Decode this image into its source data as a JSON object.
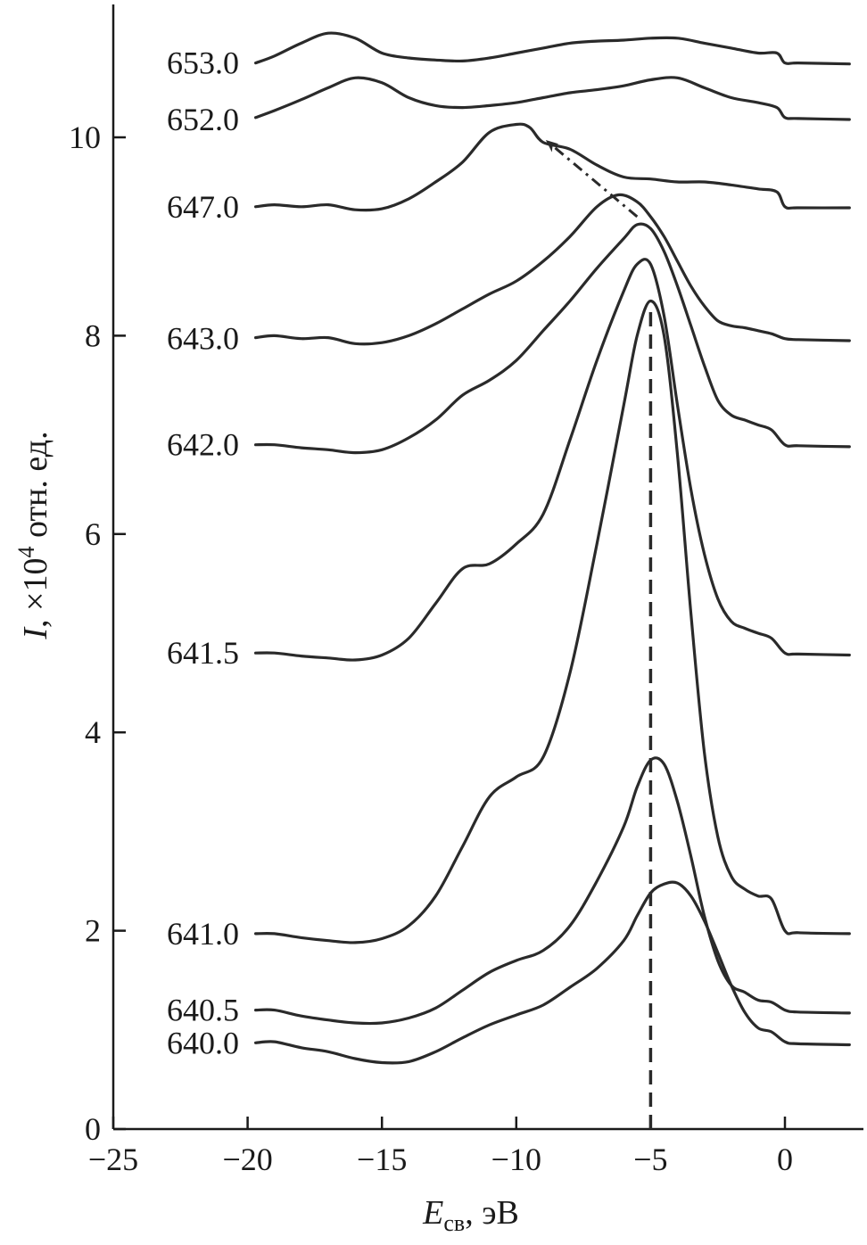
{
  "chart_data": {
    "type": "line",
    "title": "",
    "xlabel_main": "E",
    "xlabel_sub": "св",
    "xlabel_unit": ", эВ",
    "ylabel_main": "I",
    "ylabel_rest": ", ×10",
    "ylabel_power": "4",
    "ylabel_unit": " отн. ед.",
    "xlim": [
      -25,
      2.5
    ],
    "ylim": [
      0,
      11.3
    ],
    "x_ticks": [
      -25,
      -20,
      -15,
      -10,
      -5,
      0
    ],
    "x_tick_labels": [
      "−25",
      "−20",
      "−15",
      "−10",
      "−5",
      "0"
    ],
    "y_ticks": [
      0,
      2,
      4,
      6,
      8,
      10
    ],
    "y_tick_labels": [
      "0",
      "2",
      "4",
      "6",
      "8",
      "10"
    ],
    "series": [
      {
        "name": "640.0",
        "points": [
          [
            -19.7,
            0.87
          ],
          [
            -19,
            0.88
          ],
          [
            -18,
            0.82
          ],
          [
            -17,
            0.78
          ],
          [
            -16,
            0.71
          ],
          [
            -15,
            0.67
          ],
          [
            -14,
            0.68
          ],
          [
            -13,
            0.78
          ],
          [
            -12,
            0.92
          ],
          [
            -11,
            1.05
          ],
          [
            -10,
            1.15
          ],
          [
            -9,
            1.25
          ],
          [
            -8,
            1.43
          ],
          [
            -7,
            1.62
          ],
          [
            -6,
            1.9
          ],
          [
            -5.5,
            2.15
          ],
          [
            -5,
            2.38
          ],
          [
            -4.5,
            2.47
          ],
          [
            -4,
            2.48
          ],
          [
            -3.5,
            2.35
          ],
          [
            -3,
            2.1
          ],
          [
            -2.5,
            1.78
          ],
          [
            -2,
            1.45
          ],
          [
            -1.5,
            1.18
          ],
          [
            -1,
            1.02
          ],
          [
            -0.5,
            0.98
          ],
          [
            0,
            0.88
          ],
          [
            0.5,
            0.86
          ],
          [
            2.4,
            0.85
          ]
        ]
      },
      {
        "name": "640.5",
        "points": [
          [
            -19.7,
            1.2
          ],
          [
            -19,
            1.2
          ],
          [
            -18,
            1.14
          ],
          [
            -17,
            1.1
          ],
          [
            -16,
            1.07
          ],
          [
            -15,
            1.07
          ],
          [
            -14,
            1.12
          ],
          [
            -13,
            1.22
          ],
          [
            -12,
            1.4
          ],
          [
            -11,
            1.58
          ],
          [
            -10,
            1.7
          ],
          [
            -9,
            1.8
          ],
          [
            -8,
            2.05
          ],
          [
            -7,
            2.5
          ],
          [
            -6,
            3.05
          ],
          [
            -5.5,
            3.45
          ],
          [
            -5,
            3.72
          ],
          [
            -4.5,
            3.68
          ],
          [
            -4,
            3.3
          ],
          [
            -3.5,
            2.75
          ],
          [
            -3,
            2.15
          ],
          [
            -2.5,
            1.7
          ],
          [
            -2,
            1.45
          ],
          [
            -1.5,
            1.38
          ],
          [
            -1,
            1.3
          ],
          [
            -0.5,
            1.28
          ],
          [
            0,
            1.2
          ],
          [
            0.5,
            1.18
          ],
          [
            2.4,
            1.17
          ]
        ]
      },
      {
        "name": "641.0",
        "points": [
          [
            -19.7,
            1.97
          ],
          [
            -19,
            1.97
          ],
          [
            -18,
            1.93
          ],
          [
            -17,
            1.9
          ],
          [
            -16,
            1.88
          ],
          [
            -15,
            1.92
          ],
          [
            -14,
            2.05
          ],
          [
            -13,
            2.35
          ],
          [
            -12,
            2.85
          ],
          [
            -11,
            3.35
          ],
          [
            -10,
            3.55
          ],
          [
            -9,
            3.75
          ],
          [
            -8,
            4.6
          ],
          [
            -7,
            5.9
          ],
          [
            -6,
            7.3
          ],
          [
            -5.5,
            8.0
          ],
          [
            -5,
            8.35
          ],
          [
            -4.5,
            8.0
          ],
          [
            -4,
            6.8
          ],
          [
            -3.5,
            5.2
          ],
          [
            -3,
            3.8
          ],
          [
            -2.5,
            2.95
          ],
          [
            -2,
            2.55
          ],
          [
            -1.5,
            2.42
          ],
          [
            -1,
            2.35
          ],
          [
            -0.5,
            2.32
          ],
          [
            0,
            2.0
          ],
          [
            0.5,
            1.98
          ],
          [
            2.4,
            1.97
          ]
        ]
      },
      {
        "name": "641.5",
        "points": [
          [
            -19.7,
            4.8
          ],
          [
            -19,
            4.8
          ],
          [
            -18,
            4.77
          ],
          [
            -17,
            4.75
          ],
          [
            -16,
            4.73
          ],
          [
            -15,
            4.78
          ],
          [
            -14,
            4.95
          ],
          [
            -13,
            5.3
          ],
          [
            -12,
            5.65
          ],
          [
            -11,
            5.7
          ],
          [
            -10,
            5.9
          ],
          [
            -9,
            6.2
          ],
          [
            -8,
            6.95
          ],
          [
            -7,
            7.75
          ],
          [
            -6,
            8.45
          ],
          [
            -5.5,
            8.72
          ],
          [
            -5,
            8.72
          ],
          [
            -4.5,
            8.2
          ],
          [
            -4,
            7.3
          ],
          [
            -3.5,
            6.45
          ],
          [
            -3,
            5.8
          ],
          [
            -2.5,
            5.35
          ],
          [
            -2,
            5.12
          ],
          [
            -1.5,
            5.05
          ],
          [
            -1,
            5.0
          ],
          [
            -0.5,
            4.95
          ],
          [
            0,
            4.8
          ],
          [
            0.5,
            4.79
          ],
          [
            2.4,
            4.78
          ]
        ]
      },
      {
        "name": "642.0",
        "points": [
          [
            -19.7,
            6.9
          ],
          [
            -19,
            6.9
          ],
          [
            -18,
            6.87
          ],
          [
            -17,
            6.85
          ],
          [
            -16,
            6.82
          ],
          [
            -15,
            6.85
          ],
          [
            -14,
            6.97
          ],
          [
            -13,
            7.15
          ],
          [
            -12,
            7.4
          ],
          [
            -11,
            7.55
          ],
          [
            -10,
            7.75
          ],
          [
            -9,
            8.05
          ],
          [
            -8,
            8.35
          ],
          [
            -7,
            8.68
          ],
          [
            -6,
            8.98
          ],
          [
            -5.5,
            9.12
          ],
          [
            -5,
            9.08
          ],
          [
            -4.5,
            8.85
          ],
          [
            -4,
            8.5
          ],
          [
            -3.5,
            8.1
          ],
          [
            -3,
            7.7
          ],
          [
            -2.5,
            7.35
          ],
          [
            -2,
            7.2
          ],
          [
            -1.5,
            7.15
          ],
          [
            -1,
            7.1
          ],
          [
            -0.5,
            7.05
          ],
          [
            0,
            6.9
          ],
          [
            0.5,
            6.89
          ],
          [
            2.4,
            6.88
          ]
        ]
      },
      {
        "name": "643.0",
        "points": [
          [
            -19.7,
            7.98
          ],
          [
            -19,
            8.0
          ],
          [
            -18,
            7.97
          ],
          [
            -17,
            7.98
          ],
          [
            -16,
            7.92
          ],
          [
            -15,
            7.93
          ],
          [
            -14,
            8.0
          ],
          [
            -13,
            8.12
          ],
          [
            -12,
            8.27
          ],
          [
            -11,
            8.42
          ],
          [
            -10,
            8.55
          ],
          [
            -9,
            8.75
          ],
          [
            -8,
            9.0
          ],
          [
            -7,
            9.3
          ],
          [
            -6.2,
            9.42
          ],
          [
            -5.5,
            9.35
          ],
          [
            -5,
            9.2
          ],
          [
            -4.5,
            9.0
          ],
          [
            -4,
            8.75
          ],
          [
            -3.5,
            8.5
          ],
          [
            -3,
            8.3
          ],
          [
            -2.5,
            8.15
          ],
          [
            -2,
            8.1
          ],
          [
            -1.5,
            8.08
          ],
          [
            -1,
            8.05
          ],
          [
            -0.5,
            8.02
          ],
          [
            0,
            7.97
          ],
          [
            0.5,
            7.96
          ],
          [
            2.4,
            7.95
          ]
        ]
      },
      {
        "name": "647.0",
        "points": [
          [
            -19.7,
            9.3
          ],
          [
            -19,
            9.32
          ],
          [
            -18,
            9.3
          ],
          [
            -17,
            9.32
          ],
          [
            -16,
            9.27
          ],
          [
            -15,
            9.28
          ],
          [
            -14,
            9.38
          ],
          [
            -13,
            9.55
          ],
          [
            -12,
            9.75
          ],
          [
            -11,
            10.05
          ],
          [
            -10,
            10.13
          ],
          [
            -9.5,
            10.1
          ],
          [
            -9,
            9.95
          ],
          [
            -8,
            9.88
          ],
          [
            -7,
            9.72
          ],
          [
            -6,
            9.6
          ],
          [
            -5,
            9.58
          ],
          [
            -4,
            9.55
          ],
          [
            -3,
            9.55
          ],
          [
            -2,
            9.52
          ],
          [
            -1,
            9.48
          ],
          [
            -0.3,
            9.45
          ],
          [
            0,
            9.3
          ],
          [
            0.5,
            9.29
          ],
          [
            2.4,
            9.29
          ]
        ]
      },
      {
        "name": "652.0",
        "points": [
          [
            -19.7,
            10.2
          ],
          [
            -19,
            10.27
          ],
          [
            -18,
            10.38
          ],
          [
            -17,
            10.5
          ],
          [
            -16,
            10.6
          ],
          [
            -15,
            10.55
          ],
          [
            -14,
            10.4
          ],
          [
            -13,
            10.32
          ],
          [
            -12,
            10.3
          ],
          [
            -11,
            10.32
          ],
          [
            -10,
            10.35
          ],
          [
            -9,
            10.4
          ],
          [
            -8,
            10.45
          ],
          [
            -7,
            10.48
          ],
          [
            -6,
            10.52
          ],
          [
            -5,
            10.58
          ],
          [
            -4,
            10.6
          ],
          [
            -3,
            10.5
          ],
          [
            -2,
            10.4
          ],
          [
            -1,
            10.35
          ],
          [
            -0.3,
            10.3
          ],
          [
            0,
            10.2
          ],
          [
            0.5,
            10.19
          ],
          [
            2.4,
            10.18
          ]
        ]
      },
      {
        "name": "653.0",
        "points": [
          [
            -19.7,
            10.75
          ],
          [
            -19,
            10.82
          ],
          [
            -18,
            10.95
          ],
          [
            -17,
            11.05
          ],
          [
            -16,
            11.0
          ],
          [
            -15,
            10.85
          ],
          [
            -14,
            10.8
          ],
          [
            -13,
            10.78
          ],
          [
            -12,
            10.77
          ],
          [
            -11,
            10.8
          ],
          [
            -10,
            10.85
          ],
          [
            -9,
            10.9
          ],
          [
            -8,
            10.95
          ],
          [
            -7,
            10.97
          ],
          [
            -6,
            10.98
          ],
          [
            -5,
            11.0
          ],
          [
            -4,
            11.0
          ],
          [
            -3,
            10.95
          ],
          [
            -2,
            10.9
          ],
          [
            -1,
            10.85
          ],
          [
            -0.3,
            10.85
          ],
          [
            0,
            10.75
          ],
          [
            0.5,
            10.75
          ],
          [
            2.4,
            10.74
          ]
        ]
      }
    ],
    "curve_labels": [
      {
        "text": "653.0",
        "y": 10.75
      },
      {
        "text": "652.0",
        "y": 10.18
      },
      {
        "text": "647.0",
        "y": 9.3
      },
      {
        "text": "643.0",
        "y": 7.97
      },
      {
        "text": "642.0",
        "y": 6.9
      },
      {
        "text": "641.5",
        "y": 4.8
      },
      {
        "text": "641.0",
        "y": 1.97
      },
      {
        "text": "640.5",
        "y": 1.2
      },
      {
        "text": "640.0",
        "y": 0.87
      }
    ],
    "annotations": [
      {
        "kind": "dashed-vertical",
        "x": -5.0,
        "y_from": 0,
        "y_to": 8.3
      },
      {
        "kind": "dash-dot-arrow",
        "from": [
          -5.5,
          9.2
        ],
        "to": [
          -8.8,
          9.95
        ]
      }
    ]
  }
}
